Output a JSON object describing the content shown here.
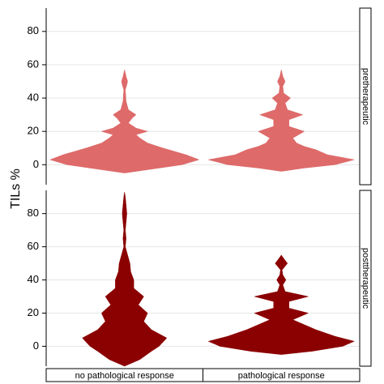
{
  "chart_data": {
    "type": "violin",
    "ylabel": "TILs %",
    "categories": [
      "no pathological response",
      "pathological response"
    ],
    "ylim": [
      -12,
      94
    ],
    "yticks": [
      0,
      20,
      40,
      60,
      80
    ],
    "grid": true,
    "facets": [
      {
        "label": "pretherapeutic",
        "violins": [
          {
            "color": "#de6a6a",
            "y": [
              -5,
              -3,
              0,
              3,
              6,
              10,
              13,
              16,
              18,
              20,
              22,
              25,
              28,
              30,
              33,
              38,
              45,
              48,
              50,
              53,
              57
            ],
            "density": [
              0,
              0.3,
              0.75,
              0.97,
              0.8,
              0.5,
              0.3,
              0.2,
              0.15,
              0.3,
              0.15,
              0.05,
              0.1,
              0.15,
              0.05,
              0.02,
              0.01,
              0.03,
              0.04,
              0.02,
              0
            ]
          },
          {
            "color": "#de6a6a",
            "y": [
              -4,
              -2,
              0,
              3,
              6,
              9,
              11,
              13,
              16,
              20,
              23,
              27,
              30,
              33,
              37,
              40,
              43,
              47,
              50,
              53,
              57
            ],
            "density": [
              0,
              0.3,
              0.7,
              0.95,
              0.6,
              0.45,
              0.3,
              0.2,
              0.15,
              0.3,
              0.1,
              0.1,
              0.28,
              0.08,
              0.05,
              0.12,
              0.03,
              0.02,
              0.05,
              0.02,
              0
            ]
          }
        ]
      },
      {
        "label": "posttherapeutic",
        "violins": [
          {
            "color": "#8b0000",
            "y": [
              -12,
              -8,
              -3,
              0,
              5,
              10,
              15,
              20,
              25,
              30,
              35,
              40,
              45,
              50,
              55,
              60,
              65,
              70,
              75,
              80,
              85,
              90,
              93
            ],
            "density": [
              0,
              0.2,
              0.35,
              0.45,
              0.55,
              0.35,
              0.25,
              0.3,
              0.18,
              0.25,
              0.12,
              0.12,
              0.08,
              0.07,
              0.04,
              0.01,
              0.02,
              0.01,
              0.02,
              0.03,
              0.02,
              0.01,
              0
            ]
          },
          {
            "color": "#8b0000",
            "y": [
              -5,
              -3,
              0,
              3,
              6,
              10,
              13,
              16,
              20,
              23,
              27,
              30,
              33,
              37,
              40,
              43,
              46,
              50,
              53,
              55
            ],
            "density": [
              0,
              0.4,
              0.8,
              0.95,
              0.7,
              0.45,
              0.3,
              0.15,
              0.35,
              0.1,
              0.1,
              0.35,
              0.05,
              0.02,
              0.06,
              0.02,
              0.01,
              0.08,
              0.03,
              0
            ]
          }
        ]
      }
    ]
  }
}
